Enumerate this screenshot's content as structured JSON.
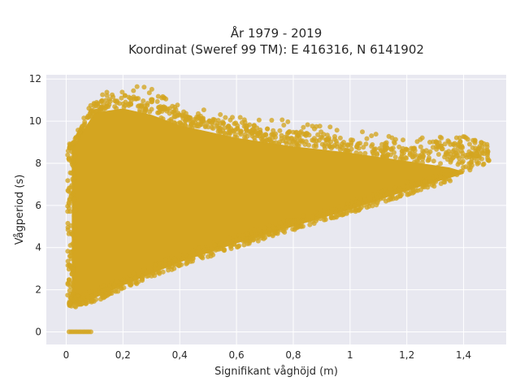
{
  "chart_data": {
    "type": "scatter",
    "title_line1": "År 1979 - 2019",
    "title_line2": "Koordinat (Sweref 99 TM): E 416316, N 6141902",
    "xlabel": "Signifikant våghöjd (m)",
    "ylabel": "Vågperiod (s)",
    "xlim": [
      -0.07,
      1.55
    ],
    "ylim": [
      -0.6,
      12.2
    ],
    "x_ticks": [
      0,
      0.2,
      0.4,
      0.6,
      0.8,
      1.0,
      1.2,
      1.4
    ],
    "x_tick_labels": [
      "0",
      "0,2",
      "0,4",
      "0,6",
      "0,8",
      "1",
      "1,2",
      "1,4"
    ],
    "y_ticks": [
      0,
      2,
      4,
      6,
      8,
      10,
      12
    ],
    "y_tick_labels": [
      "0",
      "2",
      "4",
      "6",
      "8",
      "10",
      "12"
    ],
    "grid": true,
    "marker_color": "#d4a520",
    "background_color": "#e8e8f0",
    "envelope": {
      "description_points_upper": [
        [
          0.02,
          9.0
        ],
        [
          0.1,
          11.2
        ],
        [
          0.2,
          11.8
        ],
        [
          0.3,
          11.6
        ],
        [
          0.4,
          10.7
        ],
        [
          0.6,
          10.4
        ],
        [
          0.8,
          10.0
        ],
        [
          1.0,
          9.6
        ],
        [
          1.2,
          9.2
        ],
        [
          1.4,
          9.3
        ],
        [
          1.49,
          8.9
        ]
      ],
      "description_points_lower": [
        [
          0.01,
          1.1
        ],
        [
          0.1,
          1.4
        ],
        [
          0.2,
          2.0
        ],
        [
          0.4,
          3.1
        ],
        [
          0.6,
          4.0
        ],
        [
          0.8,
          4.8
        ],
        [
          1.0,
          5.6
        ],
        [
          1.2,
          6.5
        ],
        [
          1.35,
          7.1
        ],
        [
          1.49,
          8.0
        ]
      ]
    },
    "zero_period_points": {
      "x_range": [
        0.01,
        0.09
      ],
      "y": 0
    }
  }
}
